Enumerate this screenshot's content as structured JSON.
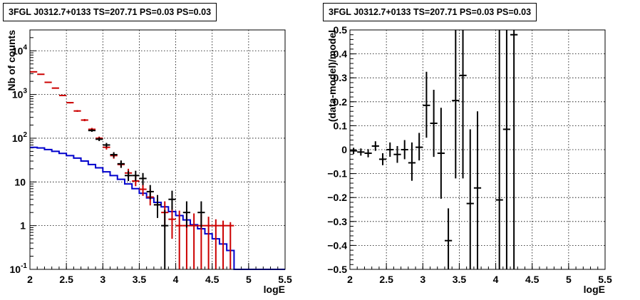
{
  "chart_data": [
    {
      "type": "line",
      "title": "3FGL J0312.7+0133 TS=207.71 PS=0.03 PS=0.03",
      "xlabel": "logE",
      "ylabel": "Nb of counts",
      "xlim": [
        2.0,
        5.5
      ],
      "ylim": [
        0.1,
        30000
      ],
      "y_scale": "log",
      "grid": true,
      "x_ticks": [
        "2",
        "2.5",
        "3",
        "3.5",
        "4",
        "4.5",
        "5",
        "5.5"
      ],
      "y_ticks": [
        {
          "value": 0.1,
          "base": "10",
          "exp": "-1"
        },
        {
          "value": 1,
          "base": "1",
          "exp": ""
        },
        {
          "value": 10,
          "base": "10",
          "exp": ""
        },
        {
          "value": 100,
          "base": "10",
          "exp": "2"
        },
        {
          "value": 1000,
          "base": "10",
          "exp": "3"
        },
        {
          "value": 10000,
          "base": "10",
          "exp": "4"
        }
      ],
      "series": [
        {
          "style": "histogram",
          "color": "#0000cc",
          "edges": [
            2.0,
            2.1,
            2.2,
            2.3,
            2.4,
            2.5,
            2.6,
            2.7,
            2.8,
            2.9,
            3.0,
            3.1,
            3.2,
            3.3,
            3.4,
            3.5,
            3.6,
            3.7,
            3.8,
            3.9,
            4.0,
            4.1,
            4.2,
            4.3,
            4.4,
            4.5,
            4.6,
            4.7,
            4.8,
            4.9,
            5.0,
            5.1,
            5.2,
            5.3,
            5.4,
            5.5
          ],
          "values": [
            62,
            60,
            55,
            50,
            45,
            40,
            35,
            30,
            25,
            21,
            17,
            14,
            11.5,
            9,
            7,
            5.5,
            4.3,
            3.4,
            2.7,
            2.1,
            1.7,
            1.35,
            1.05,
            0.85,
            0.65,
            0.5,
            0.38,
            0.27,
            0.1,
            0.1,
            0.1,
            0.1,
            0.1,
            0.1,
            0.1
          ]
        },
        {
          "style": "errorbar",
          "color": "#cc0000",
          "points": [
            {
              "x": 2.05,
              "y": 3300,
              "lo": 3240,
              "hi": 3360
            },
            {
              "x": 2.15,
              "y": 2900,
              "lo": 2840,
              "hi": 2960
            },
            {
              "x": 2.25,
              "y": 1900,
              "lo": 1850,
              "hi": 1950
            },
            {
              "x": 2.35,
              "y": 1400,
              "lo": 1360,
              "hi": 1440
            },
            {
              "x": 2.45,
              "y": 950,
              "lo": 920,
              "hi": 980
            },
            {
              "x": 2.55,
              "y": 650,
              "lo": 625,
              "hi": 675
            },
            {
              "x": 2.65,
              "y": 420,
              "lo": 400,
              "hi": 440
            },
            {
              "x": 2.75,
              "y": 260,
              "lo": 245,
              "hi": 275
            },
            {
              "x": 2.85,
              "y": 160,
              "lo": 148,
              "hi": 172
            },
            {
              "x": 2.95,
              "y": 100,
              "lo": 91,
              "hi": 109
            },
            {
              "x": 3.05,
              "y": 62,
              "lo": 55,
              "hi": 70
            },
            {
              "x": 3.15,
              "y": 40,
              "lo": 34,
              "hi": 46
            },
            {
              "x": 3.25,
              "y": 25,
              "lo": 21,
              "hi": 30
            },
            {
              "x": 3.35,
              "y": 16,
              "lo": 12.5,
              "hi": 20
            },
            {
              "x": 3.45,
              "y": 10.5,
              "lo": 8,
              "hi": 14
            },
            {
              "x": 3.55,
              "y": 6.8,
              "lo": 4.8,
              "hi": 9.5
            },
            {
              "x": 3.65,
              "y": 4.5,
              "lo": 2.9,
              "hi": 6.8
            },
            {
              "x": 3.75,
              "y": 3.0,
              "lo": 1.7,
              "hi": 5.0
            },
            {
              "x": 3.85,
              "y": 2.0,
              "lo": 0.9,
              "hi": 3.6
            },
            {
              "x": 3.95,
              "y": 1.4,
              "lo": 0.5,
              "hi": 2.8
            },
            {
              "x": 4.05,
              "y": 1.0,
              "lo": 0.1,
              "hi": 2.2
            },
            {
              "x": 4.15,
              "y": 1.0,
              "lo": 0.1,
              "hi": 2.0
            },
            {
              "x": 4.25,
              "y": 1.0,
              "lo": 0.1,
              "hi": 1.9
            },
            {
              "x": 4.35,
              "y": 1.0,
              "lo": 0.1,
              "hi": 1.8
            },
            {
              "x": 4.45,
              "y": 1.0,
              "lo": 0.1,
              "hi": 1.6
            },
            {
              "x": 4.55,
              "y": 1.0,
              "lo": 0.1,
              "hi": 1.4
            },
            {
              "x": 4.65,
              "y": 1.0,
              "lo": 0.1,
              "hi": 1.3
            },
            {
              "x": 4.75,
              "y": 1.0,
              "lo": 0.1,
              "hi": 1.2
            }
          ]
        },
        {
          "style": "errorbar",
          "color": "#000000",
          "points": [
            {
              "x": 2.85,
              "y": 150,
              "lo": 140,
              "hi": 162
            },
            {
              "x": 2.95,
              "y": 95,
              "lo": 86,
              "hi": 104
            },
            {
              "x": 3.05,
              "y": 70,
              "lo": 62,
              "hi": 78
            },
            {
              "x": 3.15,
              "y": 42,
              "lo": 36,
              "hi": 48
            },
            {
              "x": 3.25,
              "y": 26,
              "lo": 21,
              "hi": 31
            },
            {
              "x": 3.35,
              "y": 14,
              "lo": 10.5,
              "hi": 18
            },
            {
              "x": 3.45,
              "y": 14,
              "lo": 10.5,
              "hi": 18
            },
            {
              "x": 3.55,
              "y": 12,
              "lo": 8.5,
              "hi": 16
            },
            {
              "x": 3.65,
              "y": 6,
              "lo": 4,
              "hi": 8.5
            },
            {
              "x": 3.75,
              "y": 3,
              "lo": 1.5,
              "hi": 5
            },
            {
              "x": 3.85,
              "y": 1,
              "lo": 0.1,
              "hi": 2.3
            },
            {
              "x": 3.95,
              "y": 4,
              "lo": 2.3,
              "hi": 6.3
            },
            {
              "x": 4.15,
              "y": 2,
              "lo": 0.9,
              "hi": 3.6
            },
            {
              "x": 4.35,
              "y": 2,
              "lo": 0.9,
              "hi": 3.6
            }
          ]
        }
      ]
    },
    {
      "type": "scatter",
      "title": "3FGL J0312.7+0133 TS=207.71 PS=0.03 PS=0.03",
      "xlabel": "logE",
      "ylabel": "(data-model)/model",
      "xlim": [
        2.0,
        5.5
      ],
      "ylim": [
        -0.5,
        0.5
      ],
      "grid": true,
      "x_ticks": [
        "2",
        "2.5",
        "3",
        "3.5",
        "4",
        "4.5",
        "5",
        "5.5"
      ],
      "y_ticks": [
        "−0.5",
        "−0.4",
        "−0.3",
        "−0.2",
        "−0.1",
        "0",
        "0.1",
        "0.2",
        "0.3",
        "0.4",
        "0.5"
      ],
      "series": [
        {
          "style": "errorbar",
          "color": "#000000",
          "points": [
            {
              "x": 2.05,
              "y": -0.005,
              "lo": -0.018,
              "hi": 0.008
            },
            {
              "x": 2.15,
              "y": -0.01,
              "lo": -0.025,
              "hi": 0.005
            },
            {
              "x": 2.25,
              "y": -0.015,
              "lo": -0.032,
              "hi": 0.002
            },
            {
              "x": 2.35,
              "y": 0.015,
              "lo": -0.005,
              "hi": 0.035
            },
            {
              "x": 2.45,
              "y": -0.04,
              "lo": -0.065,
              "hi": -0.015
            },
            {
              "x": 2.55,
              "y": 0.0,
              "lo": -0.03,
              "hi": 0.03
            },
            {
              "x": 2.65,
              "y": -0.02,
              "lo": -0.055,
              "hi": 0.015
            },
            {
              "x": 2.75,
              "y": 0.0,
              "lo": -0.04,
              "hi": 0.04
            },
            {
              "x": 2.85,
              "y": -0.055,
              "lo": -0.13,
              "hi": 0.03
            },
            {
              "x": 2.95,
              "y": 0.01,
              "lo": -0.045,
              "hi": 0.07
            },
            {
              "x": 3.05,
              "y": 0.185,
              "lo": 0.05,
              "hi": 0.325
            },
            {
              "x": 3.15,
              "y": 0.11,
              "lo": -0.03,
              "hi": 0.25
            },
            {
              "x": 3.25,
              "y": -0.015,
              "lo": -0.205,
              "hi": 0.175
            },
            {
              "x": 3.35,
              "y": -0.38,
              "lo": -0.5,
              "hi": -0.245
            },
            {
              "x": 3.45,
              "y": 0.205,
              "lo": -0.12,
              "hi": 0.5
            },
            {
              "x": 3.55,
              "y": 0.31,
              "lo": -0.12,
              "hi": 0.5
            },
            {
              "x": 3.65,
              "y": -0.225,
              "lo": -0.5,
              "hi": 0.085
            },
            {
              "x": 3.75,
              "y": -0.16,
              "lo": -0.5,
              "hi": 0.16
            },
            {
              "x": 4.05,
              "y": -0.21,
              "lo": -0.5,
              "hi": 0.5
            },
            {
              "x": 4.15,
              "y": 0.085,
              "lo": -0.5,
              "hi": 0.5
            },
            {
              "x": 4.25,
              "y": 0.48,
              "lo": -0.5,
              "hi": 0.5
            }
          ]
        }
      ]
    }
  ]
}
